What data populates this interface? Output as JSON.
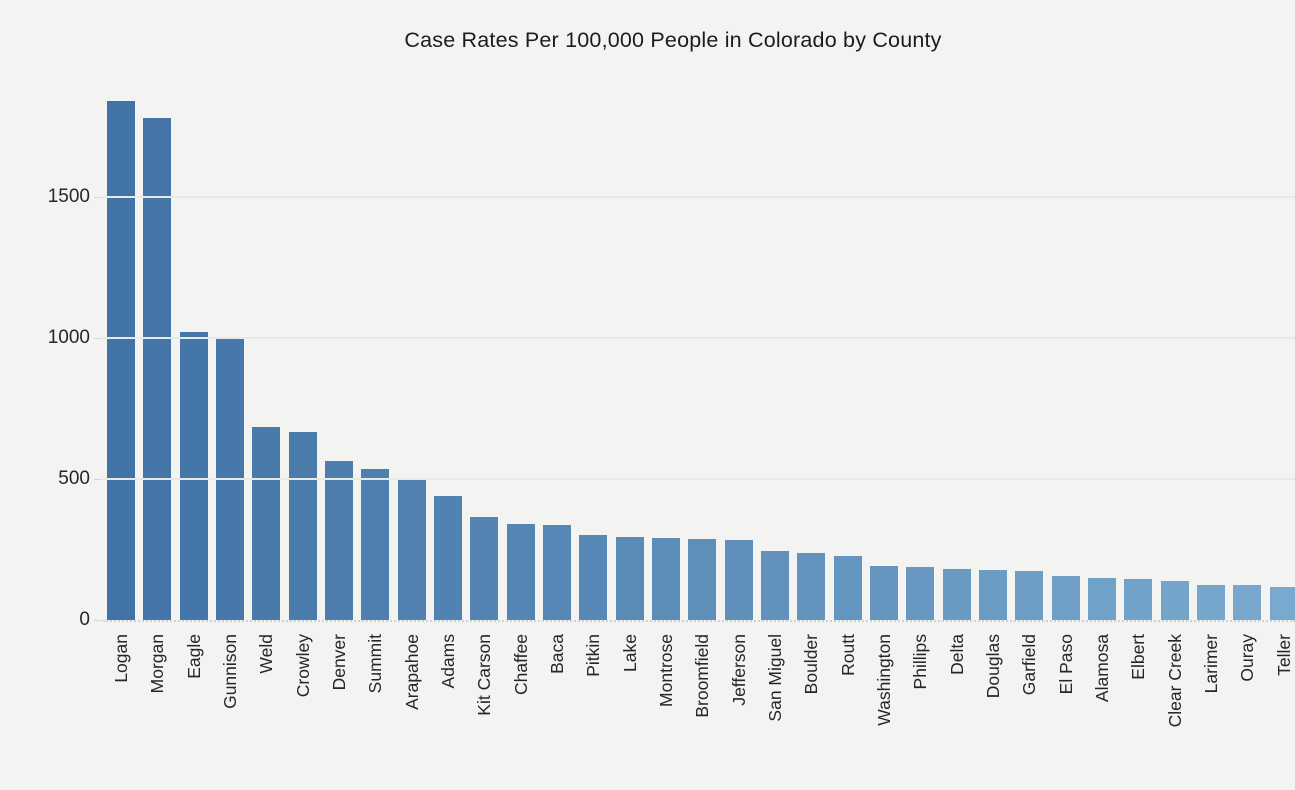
{
  "title": "Case Rates Per 100,000 People in Colorado by County",
  "chart_data": {
    "type": "bar",
    "title": "Case Rates Per 100,000 People in Colorado by County",
    "xlabel": "",
    "ylabel": "",
    "categories": [
      "Logan",
      "Morgan",
      "Eagle",
      "Gunnison",
      "Weld",
      "Crowley",
      "Denver",
      "Summit",
      "Arapahoe",
      "Adams",
      "Kit Carson",
      "Chaffee",
      "Baca",
      "Pitkin",
      "Lake",
      "Montrose",
      "Broomfield",
      "Jefferson",
      "San Miguel",
      "Boulder",
      "Routt",
      "Washington",
      "Phillips",
      "Delta",
      "Douglas",
      "Garfield",
      "El Paso",
      "Alamosa",
      "Elbert",
      "Clear Creek",
      "Larimer",
      "Ouray",
      "Teller"
    ],
    "values": [
      1840,
      1780,
      1020,
      1005,
      685,
      665,
      565,
      535,
      505,
      440,
      365,
      342,
      337,
      300,
      295,
      290,
      287,
      285,
      243,
      237,
      228,
      193,
      189,
      181,
      178,
      175,
      157,
      150,
      147,
      140,
      124,
      123,
      116
    ],
    "yticks": [
      0,
      500,
      1000,
      1500
    ],
    "ylim": [
      0,
      1900
    ],
    "grid": true,
    "legend": null,
    "colors": {
      "background": "#f3f3f1",
      "bar_color_start": "#4273a5",
      "bar_color_end": "#79a9ce",
      "gridline": "#e7e9e6",
      "text": "#262626"
    }
  }
}
